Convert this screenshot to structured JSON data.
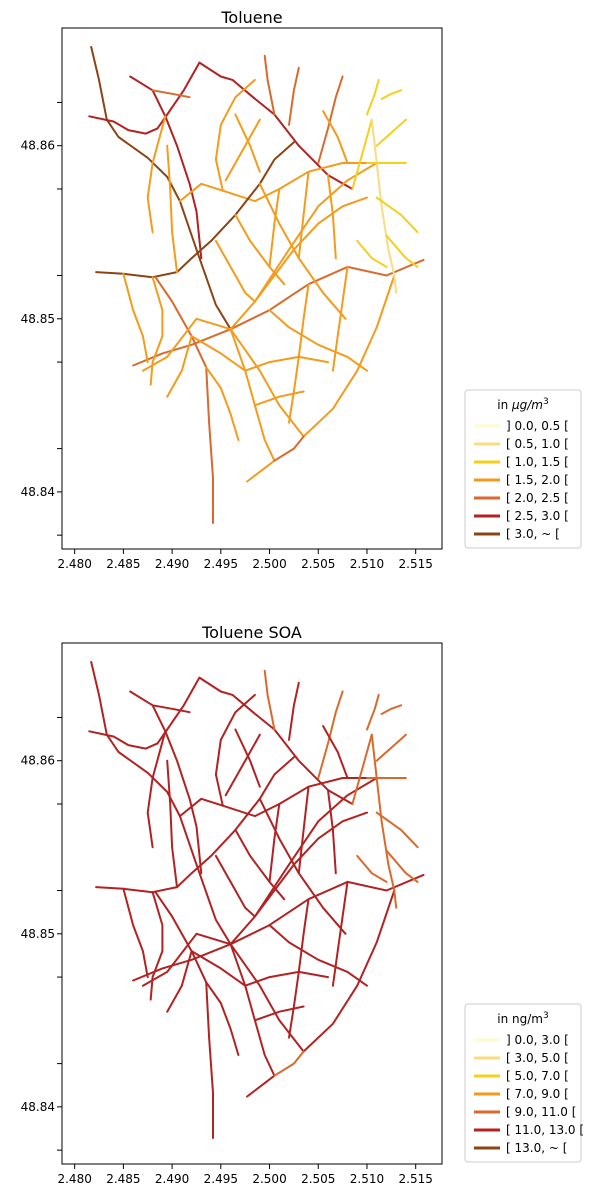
{
  "panels": [
    {
      "title": "Toluene",
      "legend_title_prefix": "in ",
      "legend_title_unit": "μg/m",
      "legend_title_sup": "3",
      "legend": [
        {
          "label": "] 0.0, 0.5 [",
          "color": "#fffbd1"
        },
        {
          "label": "[ 0.5, 1.0 [",
          "color": "#f9dc82"
        },
        {
          "label": "[ 1.0, 1.5 [",
          "color": "#f7cf1a"
        },
        {
          "label": "[ 1.5, 2.0 [",
          "color": "#f59b1c"
        },
        {
          "label": "[ 2.0, 2.5 [",
          "color": "#d96a2c"
        },
        {
          "label": "[ 2.5, 3.0 [",
          "color": "#b22222"
        },
        {
          "label": "[ 3.0, ~ [",
          "color": "#8b4513"
        }
      ],
      "x_ticks": [
        "2.480",
        "2.485",
        "2.490",
        "2.495",
        "2.500",
        "2.505",
        "2.510",
        "2.515"
      ],
      "y_ticks": [
        "48.84",
        "48.85",
        "48.86"
      ]
    },
    {
      "title": "Toluene SOA",
      "legend_title_prefix": "in ",
      "legend_title_unit": "ng/m",
      "legend_title_sup": "3",
      "legend": [
        {
          "label": "] 0.0, 3.0 [",
          "color": "#fffbd1"
        },
        {
          "label": "[ 3.0, 5.0 [",
          "color": "#f9dc82"
        },
        {
          "label": "[ 5.0, 7.0 [",
          "color": "#f7cf1a"
        },
        {
          "label": "[ 7.0, 9.0 [",
          "color": "#f59b1c"
        },
        {
          "label": "[ 9.0, 11.0 [",
          "color": "#d96a2c"
        },
        {
          "label": "[ 11.0, 13.0 [",
          "color": "#b22222"
        },
        {
          "label": "[ 13.0, ~ [",
          "color": "#8b4513"
        }
      ],
      "x_ticks": [
        "2.480",
        "2.485",
        "2.490",
        "2.495",
        "2.500",
        "2.505",
        "2.510",
        "2.515"
      ],
      "y_ticks": [
        "48.84",
        "48.85",
        "48.86"
      ]
    }
  ],
  "streets": [
    {
      "pts": [
        [
          2.4817,
          48.8657
        ],
        [
          2.4825,
          48.8638
        ],
        [
          2.4833,
          48.8615
        ],
        [
          2.4845,
          48.8605
        ],
        [
          2.4875,
          48.8593
        ],
        [
          2.4895,
          48.8582
        ],
        [
          2.4908,
          48.8568
        ],
        [
          2.4925,
          48.854
        ],
        [
          2.4945,
          48.8508
        ],
        [
          2.496,
          48.8494
        ]
      ],
      "cls": [
        6,
        5
      ]
    },
    {
      "pts": [
        [
          2.4815,
          48.8617
        ],
        [
          2.484,
          48.8614
        ],
        [
          2.4855,
          48.8609
        ],
        [
          2.4873,
          48.8607
        ],
        [
          2.4885,
          48.861
        ]
      ],
      "cls": [
        5,
        5
      ]
    },
    {
      "pts": [
        [
          2.4857,
          48.864
        ],
        [
          2.488,
          48.8632
        ],
        [
          2.4893,
          48.8617
        ],
        [
          2.4905,
          48.86
        ],
        [
          2.4918,
          48.8578
        ],
        [
          2.4925,
          48.8562
        ],
        [
          2.493,
          48.8535
        ]
      ],
      "cls": [
        5,
        5
      ]
    },
    {
      "pts": [
        [
          2.4885,
          48.861
        ],
        [
          2.4895,
          48.8618
        ],
        [
          2.4912,
          48.8632
        ],
        [
          2.4928,
          48.8648
        ],
        [
          2.495,
          48.864
        ],
        [
          2.4962,
          48.8638
        ],
        [
          2.4983,
          48.8628
        ],
        [
          2.5005,
          48.8618
        ],
        [
          2.503,
          48.86
        ],
        [
          2.506,
          48.8583
        ],
        [
          2.5085,
          48.8575
        ]
      ],
      "cls": [
        5,
        5
      ]
    },
    {
      "pts": [
        [
          2.4908,
          48.8568
        ],
        [
          2.493,
          48.8578
        ],
        [
          2.4952,
          48.8574
        ],
        [
          2.4985,
          48.8568
        ],
        [
          2.501,
          48.8575
        ],
        [
          2.504,
          48.8585
        ],
        [
          2.5075,
          48.859
        ],
        [
          2.51,
          48.859
        ]
      ],
      "cls": [
        3,
        5
      ]
    },
    {
      "pts": [
        [
          2.4822,
          48.8527
        ],
        [
          2.485,
          48.8526
        ],
        [
          2.488,
          48.8524
        ],
        [
          2.4905,
          48.8527
        ],
        [
          2.492,
          48.8535
        ],
        [
          2.494,
          48.8545
        ],
        [
          2.4965,
          48.856
        ],
        [
          2.499,
          48.8578
        ],
        [
          2.5005,
          48.8592
        ],
        [
          2.5025,
          48.8602
        ]
      ],
      "cls": [
        6,
        5
      ]
    },
    {
      "pts": [
        [
          2.4883,
          48.8524
        ],
        [
          2.49,
          48.851
        ],
        [
          2.492,
          48.849
        ],
        [
          2.4935,
          48.8472
        ],
        [
          2.4938,
          48.844
        ],
        [
          2.4942,
          48.8408
        ],
        [
          2.4942,
          48.8382
        ]
      ],
      "cls": [
        4,
        5
      ]
    },
    {
      "pts": [
        [
          2.486,
          48.8473
        ],
        [
          2.489,
          48.848
        ],
        [
          2.492,
          48.8485
        ],
        [
          2.496,
          48.8494
        ],
        [
          2.5,
          48.8505
        ],
        [
          2.504,
          48.852
        ],
        [
          2.508,
          48.853
        ],
        [
          2.512,
          48.8525
        ],
        [
          2.5158,
          48.8534
        ]
      ],
      "cls": [
        4,
        5
      ]
    },
    {
      "pts": [
        [
          2.496,
          48.8494
        ],
        [
          2.4985,
          48.851
        ],
        [
          2.502,
          48.854
        ],
        [
          2.505,
          48.8565
        ],
        [
          2.508,
          48.858
        ],
        [
          2.511,
          48.859
        ]
      ],
      "cls": [
        3,
        5
      ]
    },
    {
      "pts": [
        [
          2.496,
          48.8494
        ],
        [
          2.4975,
          48.847
        ],
        [
          2.4985,
          48.845
        ],
        [
          2.4995,
          48.843
        ],
        [
          2.5005,
          48.8418
        ],
        [
          2.4977,
          48.8406
        ]
      ],
      "cls": [
        3,
        5
      ]
    },
    {
      "pts": [
        [
          2.496,
          48.8494
        ],
        [
          2.499,
          48.847
        ],
        [
          2.501,
          48.845
        ],
        [
          2.5035,
          48.8432
        ],
        [
          2.5065,
          48.8448
        ],
        [
          2.509,
          48.847
        ],
        [
          2.511,
          48.8495
        ],
        [
          2.5128,
          48.8525
        ]
      ],
      "cls": [
        3,
        5
      ]
    },
    {
      "pts": [
        [
          2.496,
          48.8494
        ],
        [
          2.4925,
          48.85
        ],
        [
          2.4895,
          48.8478
        ],
        [
          2.487,
          48.847
        ]
      ],
      "cls": [
        3,
        5
      ]
    },
    {
      "pts": [
        [
          2.4952,
          48.8574
        ],
        [
          2.4945,
          48.8592
        ],
        [
          2.495,
          48.8612
        ],
        [
          2.4965,
          48.8628
        ],
        [
          2.4985,
          48.8638
        ]
      ],
      "cls": [
        3,
        5
      ]
    },
    {
      "pts": [
        [
          2.499,
          48.8578
        ],
        [
          2.501,
          48.8555
        ],
        [
          2.503,
          48.8535
        ],
        [
          2.5055,
          48.8515
        ],
        [
          2.5078,
          48.85
        ]
      ],
      "cls": [
        3,
        5
      ]
    },
    {
      "pts": [
        [
          2.5005,
          48.8618
        ],
        [
          2.4998,
          48.8638
        ],
        [
          2.4995,
          48.8652
        ]
      ],
      "cls": [
        4,
        4
      ]
    },
    {
      "pts": [
        [
          2.502,
          48.8612
        ],
        [
          2.5025,
          48.8632
        ],
        [
          2.503,
          48.8645
        ]
      ],
      "cls": [
        4,
        5
      ]
    },
    {
      "pts": [
        [
          2.505,
          48.859
        ],
        [
          2.506,
          48.861
        ],
        [
          2.5068,
          48.8628
        ],
        [
          2.5075,
          48.864
        ]
      ],
      "cls": [
        4,
        4
      ]
    },
    {
      "pts": [
        [
          2.5085,
          48.8575
        ],
        [
          2.5095,
          48.8595
        ],
        [
          2.5105,
          48.8615
        ]
      ],
      "cls": [
        2,
        4
      ]
    },
    {
      "pts": [
        [
          2.5105,
          48.8615
        ],
        [
          2.511,
          48.859
        ],
        [
          2.5115,
          48.8565
        ],
        [
          2.5122,
          48.854
        ],
        [
          2.5128,
          48.8525
        ],
        [
          2.513,
          48.8515
        ]
      ],
      "cls": [
        1,
        4
      ]
    },
    {
      "pts": [
        [
          2.51,
          48.859
        ],
        [
          2.5125,
          48.859
        ],
        [
          2.514,
          48.859
        ]
      ],
      "cls": [
        2,
        4
      ]
    },
    {
      "pts": [
        [
          2.511,
          48.857
        ],
        [
          2.5135,
          48.856
        ],
        [
          2.5152,
          48.855
        ]
      ],
      "cls": [
        2,
        4
      ]
    },
    {
      "pts": [
        [
          2.512,
          48.8548
        ],
        [
          2.514,
          48.8535
        ],
        [
          2.5152,
          48.853
        ]
      ],
      "cls": [
        2,
        4
      ]
    },
    {
      "pts": [
        [
          2.511,
          48.86
        ],
        [
          2.513,
          48.861
        ],
        [
          2.514,
          48.8615
        ]
      ],
      "cls": [
        2,
        4
      ]
    },
    {
      "pts": [
        [
          2.5115,
          48.8627
        ],
        [
          2.5125,
          48.863
        ],
        [
          2.5135,
          48.8632
        ]
      ],
      "cls": [
        2,
        4
      ]
    },
    {
      "pts": [
        [
          2.51,
          48.8618
        ],
        [
          2.5108,
          48.863
        ],
        [
          2.5112,
          48.8638
        ]
      ],
      "cls": [
        2,
        4
      ]
    },
    {
      "pts": [
        [
          2.4905,
          48.8527
        ],
        [
          2.49,
          48.855
        ],
        [
          2.4898,
          48.8575
        ],
        [
          2.4895,
          48.86
        ]
      ],
      "cls": [
        3,
        5
      ]
    },
    {
      "pts": [
        [
          2.488,
          48.8524
        ],
        [
          2.489,
          48.8505
        ],
        [
          2.489,
          48.849
        ],
        [
          2.488,
          48.8475
        ],
        [
          2.4878,
          48.8462
        ]
      ],
      "cls": [
        3,
        5
      ]
    },
    {
      "pts": [
        [
          2.485,
          48.8526
        ],
        [
          2.486,
          48.8505
        ],
        [
          2.487,
          48.849
        ],
        [
          2.4875,
          48.8475
        ]
      ],
      "cls": [
        3,
        5
      ]
    },
    {
      "pts": [
        [
          2.492,
          48.849
        ],
        [
          2.491,
          48.847
        ],
        [
          2.4895,
          48.8455
        ]
      ],
      "cls": [
        3,
        5
      ]
    },
    {
      "pts": [
        [
          2.4945,
          48.8545
        ],
        [
          2.496,
          48.853
        ],
        [
          2.4975,
          48.8515
        ],
        [
          2.4985,
          48.851
        ]
      ],
      "cls": [
        3,
        5
      ]
    },
    {
      "pts": [
        [
          2.4965,
          48.856
        ],
        [
          2.498,
          48.8545
        ],
        [
          2.5,
          48.853
        ],
        [
          2.5015,
          48.852
        ]
      ],
      "cls": [
        3,
        5
      ]
    },
    {
      "pts": [
        [
          2.4985,
          48.851
        ],
        [
          2.5005,
          48.8525
        ],
        [
          2.5025,
          48.854
        ],
        [
          2.505,
          48.8555
        ],
        [
          2.5075,
          48.8565
        ],
        [
          2.51,
          48.857
        ]
      ],
      "cls": [
        3,
        5
      ]
    },
    {
      "pts": [
        [
          2.5,
          48.8505
        ],
        [
          2.502,
          48.8495
        ],
        [
          2.505,
          48.8485
        ],
        [
          2.508,
          48.8478
        ],
        [
          2.51,
          48.847
        ]
      ],
      "cls": [
        3,
        5
      ]
    },
    {
      "pts": [
        [
          2.4975,
          48.847
        ],
        [
          2.5,
          48.8475
        ],
        [
          2.503,
          48.8478
        ],
        [
          2.506,
          48.8475
        ]
      ],
      "cls": [
        3,
        5
      ]
    },
    {
      "pts": [
        [
          2.4985,
          48.845
        ],
        [
          2.501,
          48.8455
        ],
        [
          2.5035,
          48.8458
        ]
      ],
      "cls": [
        3,
        5
      ]
    },
    {
      "pts": [
        [
          2.504,
          48.852
        ],
        [
          2.5035,
          48.85
        ],
        [
          2.503,
          48.8478
        ],
        [
          2.5025,
          48.8458
        ],
        [
          2.502,
          48.844
        ]
      ],
      "cls": [
        3,
        5
      ]
    },
    {
      "pts": [
        [
          2.508,
          48.853
        ],
        [
          2.5075,
          48.851
        ],
        [
          2.507,
          48.849
        ],
        [
          2.5065,
          48.847
        ]
      ],
      "cls": [
        3,
        5
      ]
    },
    {
      "pts": [
        [
          2.501,
          48.8575
        ],
        [
          2.5005,
          48.8555
        ],
        [
          2.5,
          48.853
        ]
      ],
      "cls": [
        3,
        5
      ]
    },
    {
      "pts": [
        [
          2.504,
          48.8585
        ],
        [
          2.5035,
          48.856
        ],
        [
          2.503,
          48.8535
        ]
      ],
      "cls": [
        3,
        5
      ]
    },
    {
      "pts": [
        [
          2.506,
          48.8583
        ],
        [
          2.5065,
          48.856
        ],
        [
          2.5068,
          48.8535
        ]
      ],
      "cls": [
        3,
        5
      ]
    },
    {
      "pts": [
        [
          2.4935,
          48.8472
        ],
        [
          2.495,
          48.846
        ],
        [
          2.496,
          48.8445
        ],
        [
          2.4968,
          48.843
        ]
      ],
      "cls": [
        3,
        5
      ]
    },
    {
      "pts": [
        [
          2.4955,
          48.858
        ],
        [
          2.4975,
          48.86
        ],
        [
          2.499,
          48.8615
        ]
      ],
      "cls": [
        3,
        5
      ]
    },
    {
      "pts": [
        [
          2.4965,
          48.8618
        ],
        [
          2.498,
          48.86
        ],
        [
          2.499,
          48.8585
        ]
      ],
      "cls": [
        3,
        5
      ]
    },
    {
      "pts": [
        [
          2.488,
          48.8632
        ],
        [
          2.49,
          48.863
        ],
        [
          2.4918,
          48.8628
        ]
      ],
      "cls": [
        4,
        5
      ]
    },
    {
      "pts": [
        [
          2.5055,
          48.862
        ],
        [
          2.507,
          48.8605
        ],
        [
          2.508,
          48.859
        ]
      ],
      "cls": [
        3,
        5
      ]
    },
    {
      "pts": [
        [
          2.509,
          48.8545
        ],
        [
          2.5105,
          48.8535
        ],
        [
          2.512,
          48.853
        ]
      ],
      "cls": [
        2,
        4
      ]
    },
    {
      "pts": [
        [
          2.4893,
          48.8617
        ],
        [
          2.488,
          48.859
        ],
        [
          2.4875,
          48.857
        ],
        [
          2.488,
          48.855
        ]
      ],
      "cls": [
        3,
        5
      ]
    },
    {
      "pts": [
        [
          2.492,
          48.849
        ],
        [
          2.495,
          48.848
        ],
        [
          2.4975,
          48.847
        ]
      ],
      "cls": [
        3,
        5
      ]
    },
    {
      "pts": [
        [
          2.5035,
          48.8432
        ],
        [
          2.5025,
          48.8425
        ],
        [
          2.5005,
          48.8418
        ]
      ],
      "cls": [
        4,
        4
      ]
    }
  ]
}
